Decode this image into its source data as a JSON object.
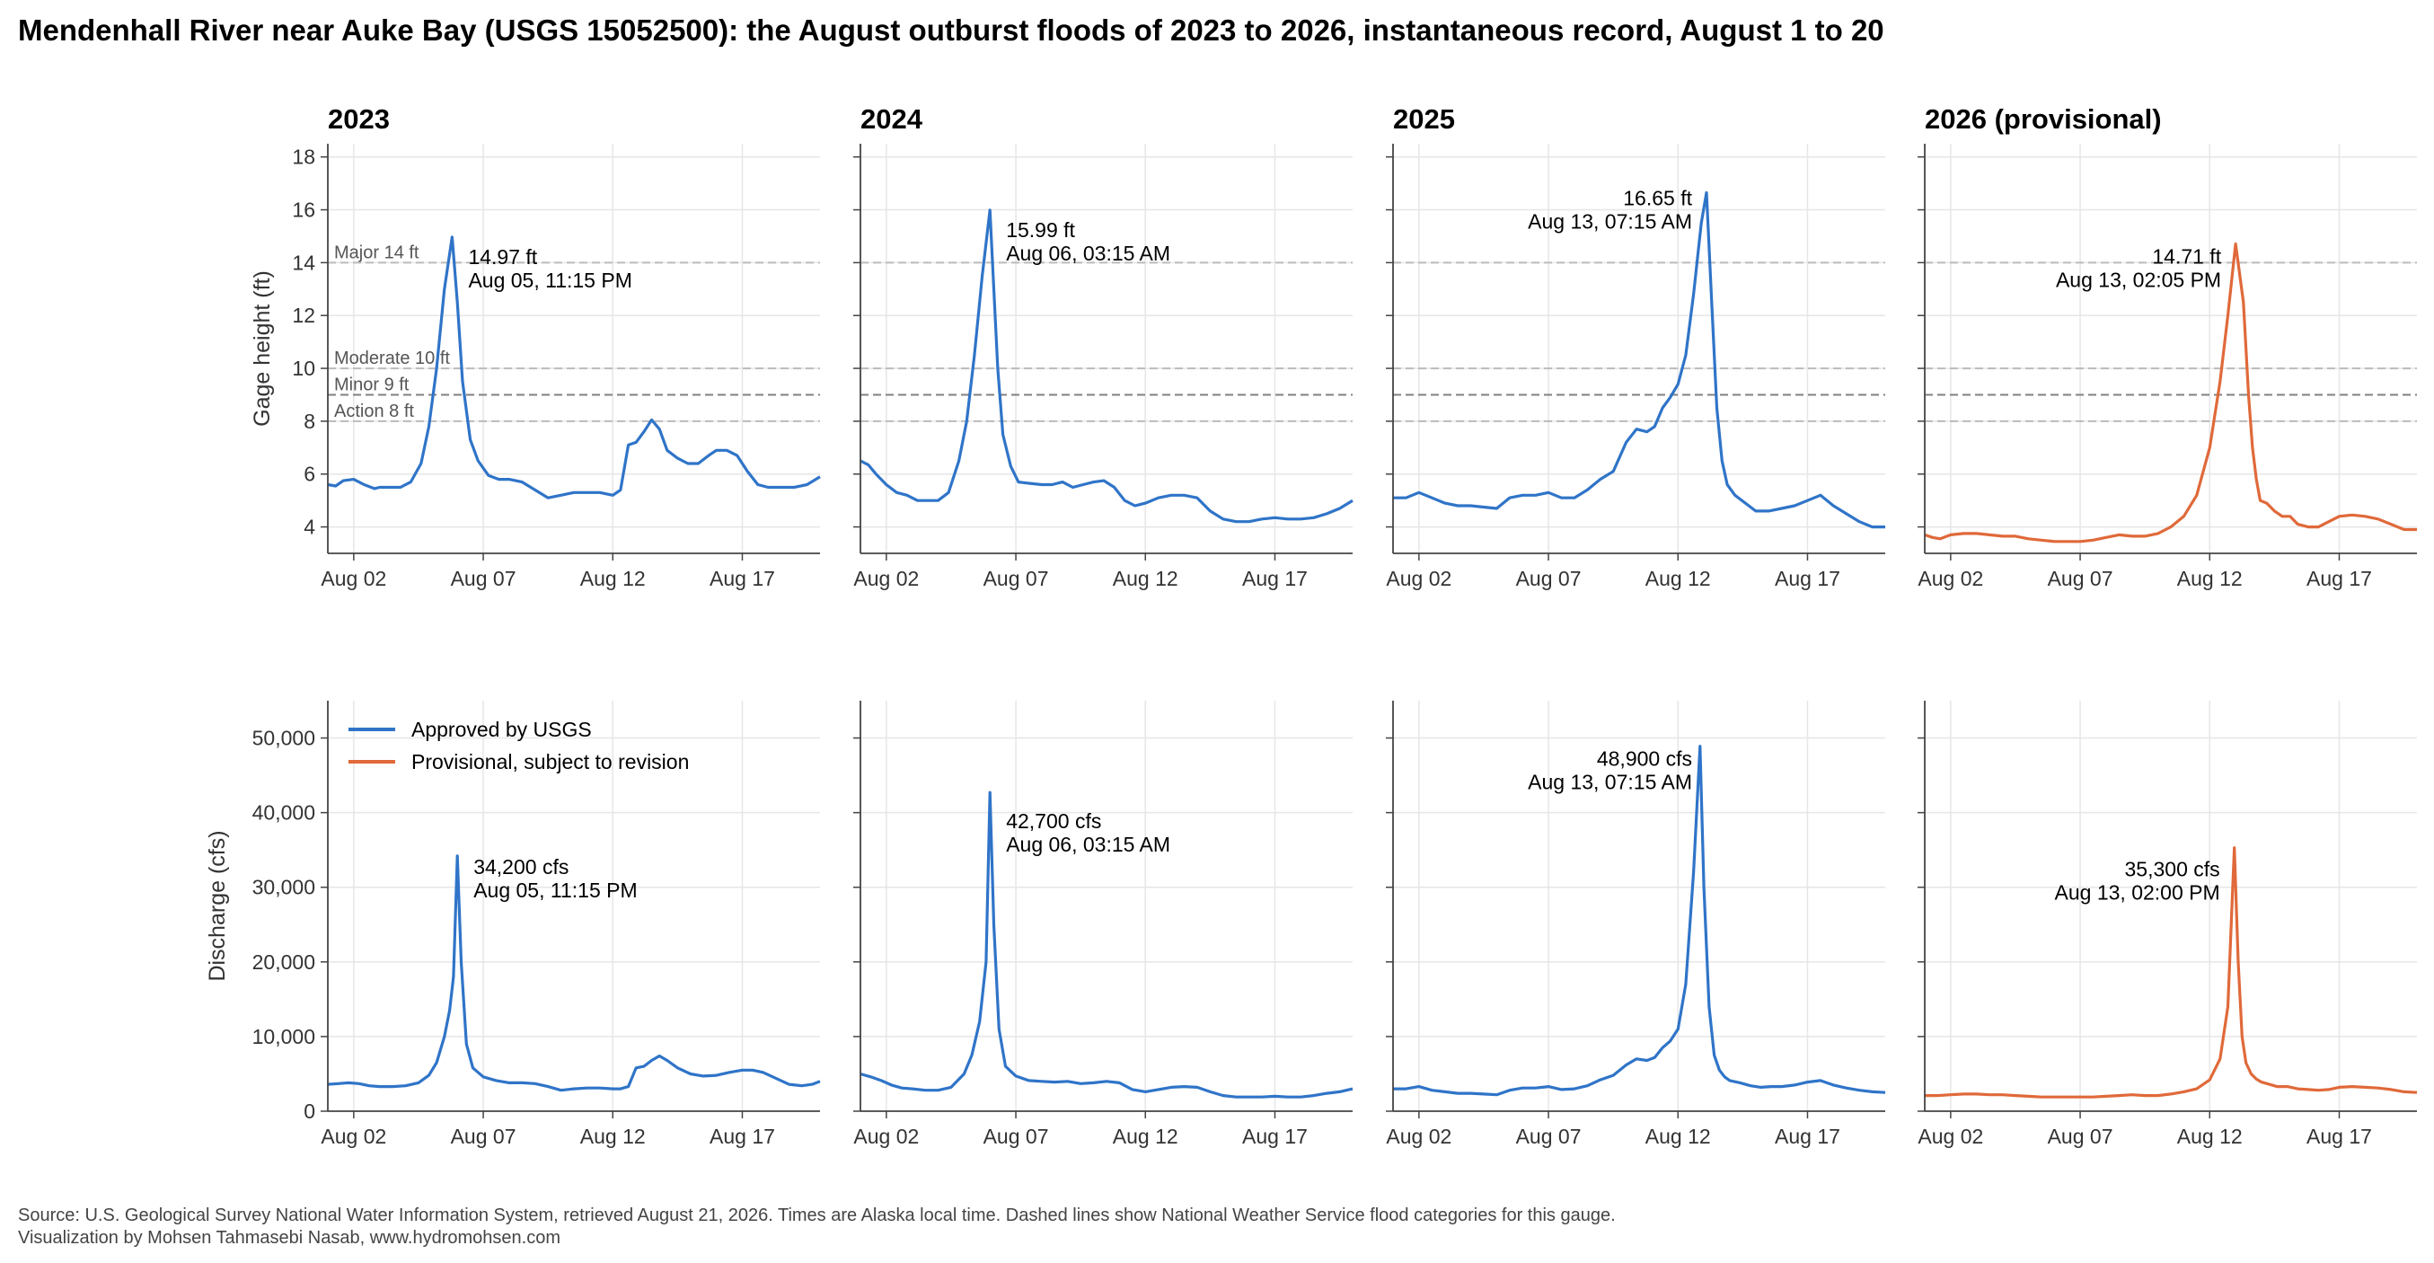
{
  "title": "Mendenhall River near Auke Bay (USGS 15052500): the August outburst floods of 2023 to 2026, instantaneous record, August 1 to 20",
  "footer": {
    "line1": "Source: U.S. Geological Survey National Water Information System, retrieved August 21, 2026. Times are Alaska local time. Dashed lines show National Weather Service flood categories for this gauge.",
    "line2": "Visualization by Mohsen Tahmasebi Nasab, www.hydromohsen.com"
  },
  "legend": {
    "placement": "upper-left of bottom-left panel",
    "items": [
      {
        "label": "Approved by USGS",
        "color": "#2f74c8"
      },
      {
        "label": "Provisional, subject to revision",
        "color": "#e0693a"
      }
    ]
  },
  "colors": {
    "approved": "#2f74c8",
    "provisional": "#e0693a",
    "grid": "#e6e6e6",
    "category_line": "#888888"
  },
  "chart_data": {
    "type": "line",
    "x_range": [
      "2026-08-01",
      "2026-08-20"
    ],
    "x_ticks": [
      "Aug 02",
      "Aug 07",
      "Aug 12",
      "Aug 17"
    ],
    "x_tick_days": [
      2,
      7,
      12,
      17
    ],
    "grid": true,
    "stage": {
      "ylabel": "Gage height (ft)",
      "ylim": [
        3,
        18.5
      ],
      "yticks": [
        4,
        6,
        8,
        10,
        12,
        14,
        16,
        18
      ],
      "flood_categories": [
        {
          "label": "Major 14 ft",
          "value": 14
        },
        {
          "label": "Moderate 10 ft",
          "value": 10
        },
        {
          "label": "Minor 9 ft",
          "value": 9
        },
        {
          "label": "Action 8 ft",
          "value": 8
        }
      ]
    },
    "discharge": {
      "ylabel": "Discharge (cfs)",
      "ylim": [
        0,
        55000
      ],
      "yticks": [
        0,
        10000,
        20000,
        30000,
        40000,
        50000
      ],
      "ytick_labels": [
        "0",
        "10,000",
        "20,000",
        "30,000",
        "40,000",
        "50,000"
      ]
    },
    "panels": [
      {
        "year": "2023",
        "status": "approved",
        "stage": {
          "day": [
            1.0,
            1.3,
            1.6,
            2.0,
            2.4,
            2.8,
            3.0,
            3.4,
            3.8,
            4.2,
            4.6,
            4.9,
            5.2,
            5.5,
            5.8,
            6.0,
            6.2,
            6.5,
            6.8,
            7.2,
            7.6,
            8.0,
            8.5,
            9.0,
            9.5,
            10.0,
            10.5,
            11.0,
            11.5,
            12.0,
            12.3,
            12.6,
            12.9,
            13.2,
            13.5,
            13.8,
            14.1,
            14.5,
            14.9,
            15.3,
            15.7,
            16.0,
            16.4,
            16.8,
            17.2,
            17.6,
            18.0,
            18.5,
            19.0,
            19.5,
            20.0
          ],
          "value": [
            5.6,
            5.55,
            5.75,
            5.8,
            5.6,
            5.45,
            5.5,
            5.5,
            5.5,
            5.7,
            6.4,
            7.8,
            10.0,
            13.0,
            14.97,
            12.5,
            9.5,
            7.3,
            6.5,
            5.95,
            5.8,
            5.8,
            5.7,
            5.4,
            5.1,
            5.2,
            5.3,
            5.3,
            5.3,
            5.2,
            5.4,
            7.1,
            7.2,
            7.6,
            8.05,
            7.7,
            6.9,
            6.6,
            6.4,
            6.4,
            6.7,
            6.9,
            6.9,
            6.7,
            6.1,
            5.6,
            5.5,
            5.5,
            5.5,
            5.6,
            5.9
          ]
        },
        "discharge": {
          "day": [
            1.0,
            1.4,
            1.8,
            2.2,
            2.6,
            3.0,
            3.5,
            4.0,
            4.5,
            4.9,
            5.2,
            5.5,
            5.7,
            5.85,
            6.0,
            6.15,
            6.35,
            6.6,
            7.0,
            7.5,
            8.0,
            8.5,
            9.0,
            9.5,
            10.0,
            10.5,
            11.0,
            11.5,
            12.0,
            12.3,
            12.6,
            12.9,
            13.2,
            13.5,
            13.8,
            14.1,
            14.5,
            15.0,
            15.5,
            16.0,
            16.5,
            17.0,
            17.4,
            17.8,
            18.3,
            18.8,
            19.3,
            19.7,
            20.0
          ],
          "value": [
            3600,
            3700,
            3800,
            3700,
            3400,
            3300,
            3300,
            3400,
            3800,
            4800,
            6500,
            10000,
            13500,
            18000,
            34200,
            20000,
            9000,
            5800,
            4600,
            4100,
            3800,
            3800,
            3700,
            3300,
            2800,
            3000,
            3100,
            3100,
            3000,
            3000,
            3300,
            5800,
            6000,
            6800,
            7400,
            6800,
            5800,
            5000,
            4700,
            4800,
            5200,
            5500,
            5500,
            5200,
            4400,
            3600,
            3400,
            3600,
            4000
          ]
        },
        "peak_stage": {
          "label": "14.97 ft",
          "time": "Aug 05, 11:15 PM",
          "day": 5.8,
          "value": 14.97
        },
        "peak_discharge": {
          "label": "34,200 cfs",
          "time": "Aug 05, 11:15 PM",
          "day": 6.0,
          "value": 34200
        }
      },
      {
        "year": "2024",
        "status": "approved",
        "stage": {
          "day": [
            1.0,
            1.3,
            1.6,
            2.0,
            2.4,
            2.8,
            3.2,
            3.6,
            4.0,
            4.4,
            4.8,
            5.1,
            5.4,
            5.7,
            6.0,
            6.15,
            6.3,
            6.5,
            6.8,
            7.1,
            7.5,
            8.0,
            8.4,
            8.8,
            9.2,
            9.6,
            10.0,
            10.4,
            10.8,
            11.2,
            11.6,
            12.0,
            12.5,
            13.0,
            13.5,
            14.0,
            14.5,
            15.0,
            15.5,
            16.0,
            16.5,
            17.0,
            17.5,
            18.0,
            18.5,
            19.0,
            19.5,
            20.0
          ],
          "value": [
            6.5,
            6.35,
            6.0,
            5.6,
            5.3,
            5.2,
            5.0,
            5.0,
            5.0,
            5.3,
            6.5,
            8.0,
            10.5,
            13.5,
            15.99,
            13.0,
            10.0,
            7.5,
            6.3,
            5.7,
            5.65,
            5.6,
            5.6,
            5.7,
            5.5,
            5.6,
            5.7,
            5.75,
            5.5,
            5.0,
            4.8,
            4.9,
            5.1,
            5.2,
            5.2,
            5.1,
            4.6,
            4.3,
            4.2,
            4.2,
            4.3,
            4.35,
            4.3,
            4.3,
            4.35,
            4.5,
            4.7,
            5.0
          ]
        },
        "discharge": {
          "day": [
            1.0,
            1.4,
            1.8,
            2.2,
            2.6,
            3.0,
            3.5,
            4.0,
            4.5,
            5.0,
            5.3,
            5.6,
            5.85,
            6.0,
            6.15,
            6.35,
            6.6,
            7.0,
            7.5,
            8.0,
            8.5,
            9.0,
            9.5,
            10.0,
            10.5,
            11.0,
            11.5,
            12.0,
            12.5,
            13.0,
            13.5,
            14.0,
            14.5,
            15.0,
            15.5,
            16.0,
            16.5,
            17.0,
            17.5,
            18.0,
            18.5,
            19.0,
            19.5,
            20.0
          ],
          "value": [
            5000,
            4600,
            4100,
            3500,
            3100,
            3000,
            2800,
            2800,
            3200,
            5000,
            7500,
            12000,
            20000,
            42700,
            25000,
            11000,
            6000,
            4700,
            4100,
            4000,
            3900,
            4000,
            3700,
            3800,
            4000,
            3800,
            2900,
            2600,
            2900,
            3200,
            3300,
            3200,
            2600,
            2100,
            1900,
            1900,
            1900,
            2000,
            1900,
            1900,
            2100,
            2400,
            2600,
            3000
          ]
        },
        "peak_stage": {
          "label": "15.99 ft",
          "time": "Aug 06, 03:15 AM",
          "day": 6.0,
          "value": 15.99
        },
        "peak_discharge": {
          "label": "42,700 cfs",
          "time": "Aug 06, 03:15 AM",
          "day": 6.0,
          "value": 42700
        }
      },
      {
        "year": "2025",
        "status": "approved",
        "stage": {
          "day": [
            1.0,
            1.5,
            2.0,
            2.5,
            3.0,
            3.5,
            4.0,
            4.5,
            5.0,
            5.5,
            6.0,
            6.5,
            7.0,
            7.5,
            8.0,
            8.5,
            9.0,
            9.5,
            10.0,
            10.4,
            10.8,
            11.1,
            11.4,
            11.7,
            12.0,
            12.3,
            12.6,
            12.9,
            13.1,
            13.3,
            13.5,
            13.7,
            13.9,
            14.2,
            14.6,
            15.0,
            15.5,
            16.0,
            16.5,
            17.0,
            17.5,
            18.0,
            18.5,
            19.0,
            19.5,
            20.0
          ],
          "value": [
            5.1,
            5.1,
            5.3,
            5.1,
            4.9,
            4.8,
            4.8,
            4.75,
            4.7,
            5.1,
            5.2,
            5.2,
            5.3,
            5.1,
            5.1,
            5.4,
            5.8,
            6.1,
            7.2,
            7.7,
            7.6,
            7.8,
            8.5,
            8.9,
            9.4,
            10.5,
            12.8,
            15.5,
            16.65,
            12.5,
            8.5,
            6.5,
            5.6,
            5.2,
            4.9,
            4.6,
            4.6,
            4.7,
            4.8,
            5.0,
            5.2,
            4.8,
            4.5,
            4.2,
            4.0,
            4.0
          ]
        },
        "discharge": {
          "day": [
            1.0,
            1.5,
            2.0,
            2.5,
            3.0,
            3.5,
            4.0,
            4.5,
            5.0,
            5.5,
            6.0,
            6.5,
            7.0,
            7.5,
            8.0,
            8.5,
            9.0,
            9.5,
            10.0,
            10.4,
            10.8,
            11.1,
            11.4,
            11.7,
            12.0,
            12.3,
            12.6,
            12.85,
            13.0,
            13.2,
            13.4,
            13.6,
            13.8,
            14.0,
            14.4,
            14.8,
            15.2,
            15.6,
            16.0,
            16.5,
            17.0,
            17.5,
            18.0,
            18.5,
            19.0,
            19.5,
            20.0
          ],
          "value": [
            3000,
            3000,
            3300,
            2800,
            2600,
            2400,
            2400,
            2300,
            2200,
            2800,
            3100,
            3100,
            3300,
            2900,
            3000,
            3400,
            4200,
            4800,
            6200,
            7000,
            6800,
            7200,
            8500,
            9400,
            11000,
            17000,
            32000,
            48900,
            30000,
            14000,
            7500,
            5500,
            4600,
            4100,
            3800,
            3400,
            3200,
            3300,
            3300,
            3500,
            3900,
            4100,
            3500,
            3100,
            2800,
            2600,
            2500
          ]
        },
        "peak_stage": {
          "label": "16.65 ft",
          "time": "Aug 13, 07:15 AM",
          "day": 13.1,
          "value": 16.65
        },
        "peak_discharge": {
          "label": "48,900 cfs",
          "time": "Aug 13, 07:15 AM",
          "day": 13.1,
          "value": 48900
        }
      },
      {
        "year": "2026  (provisional)",
        "status": "provisional",
        "stage": {
          "day": [
            1.0,
            1.3,
            1.6,
            2.0,
            2.5,
            3.0,
            3.5,
            4.0,
            4.5,
            5.0,
            5.5,
            6.0,
            6.5,
            7.0,
            7.5,
            8.0,
            8.5,
            9.0,
            9.5,
            10.0,
            10.5,
            11.0,
            11.5,
            12.0,
            12.4,
            12.7,
            13.0,
            13.3,
            13.5,
            13.65,
            13.8,
            13.95,
            14.2,
            14.5,
            14.8,
            15.1,
            15.4,
            15.8,
            16.2,
            16.6,
            17.0,
            17.5,
            18.0,
            18.5,
            19.0,
            19.5,
            20.0
          ],
          "value": [
            3.7,
            3.6,
            3.55,
            3.7,
            3.75,
            3.75,
            3.7,
            3.65,
            3.65,
            3.55,
            3.5,
            3.45,
            3.45,
            3.45,
            3.5,
            3.6,
            3.7,
            3.65,
            3.65,
            3.75,
            4.0,
            4.4,
            5.2,
            7.0,
            9.5,
            12.0,
            14.71,
            12.5,
            9.0,
            7.0,
            5.8,
            5.0,
            4.9,
            4.6,
            4.4,
            4.4,
            4.1,
            4.0,
            4.0,
            4.2,
            4.4,
            4.45,
            4.4,
            4.3,
            4.1,
            3.9,
            3.9
          ]
        },
        "discharge": {
          "day": [
            1.0,
            1.5,
            2.0,
            2.5,
            3.0,
            3.5,
            4.0,
            4.5,
            5.0,
            5.5,
            6.0,
            6.5,
            7.0,
            7.5,
            8.0,
            8.5,
            9.0,
            9.5,
            10.0,
            10.5,
            11.0,
            11.5,
            12.0,
            12.4,
            12.7,
            12.95,
            13.1,
            13.25,
            13.4,
            13.6,
            13.8,
            14.0,
            14.3,
            14.6,
            15.0,
            15.4,
            15.8,
            16.2,
            16.6,
            17.0,
            17.5,
            18.0,
            18.5,
            19.0,
            19.5,
            20.0
          ],
          "value": [
            2100,
            2100,
            2200,
            2300,
            2300,
            2200,
            2200,
            2100,
            2000,
            1900,
            1900,
            1900,
            1900,
            1900,
            2000,
            2100,
            2200,
            2100,
            2100,
            2300,
            2600,
            3000,
            4200,
            7000,
            14000,
            35300,
            20000,
            10000,
            6500,
            5000,
            4300,
            3900,
            3600,
            3300,
            3300,
            3000,
            2900,
            2800,
            2900,
            3200,
            3300,
            3200,
            3100,
            2900,
            2600,
            2500
          ]
        },
        "peak_stage": {
          "label": "14.71 ft",
          "time": "Aug 13, 02:05 PM",
          "day": 13.0,
          "value": 14.71
        },
        "peak_discharge": {
          "label": "35,300 cfs",
          "time": "Aug 13, 02:00 PM",
          "day": 12.95,
          "value": 35300
        }
      }
    ]
  }
}
